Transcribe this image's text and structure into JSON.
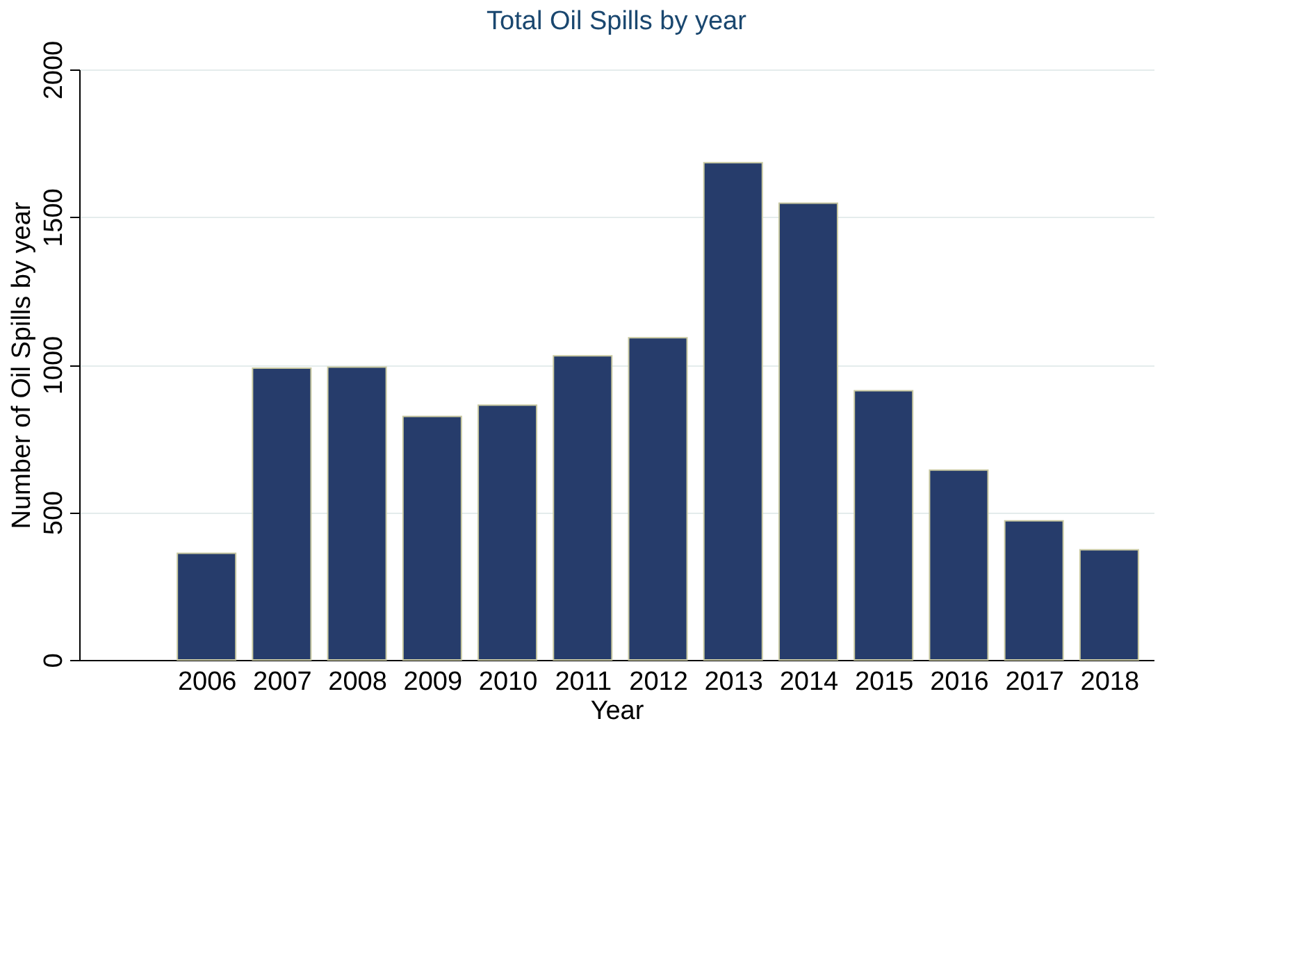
{
  "chart_data": {
    "type": "bar",
    "title": "Total Oil Spills by year",
    "xlabel": "Year",
    "ylabel": "Number of Oil Spills by year",
    "categories": [
      "2006",
      "2007",
      "2008",
      "2009",
      "2010",
      "2011",
      "2012",
      "2013",
      "2014",
      "2015",
      "2016",
      "2017",
      "2018"
    ],
    "series": [
      {
        "color": "#263c6b",
        "values": [
          361,
          988,
          992,
          825,
          863,
          1030,
          1091,
          1684,
          1547,
          912,
          643,
          471,
          373
        ]
      }
    ],
    "ylim": [
      0,
      2000
    ],
    "yticks": [
      0,
      500,
      1000,
      1500,
      2000
    ],
    "grid": "y",
    "legend": false
  }
}
